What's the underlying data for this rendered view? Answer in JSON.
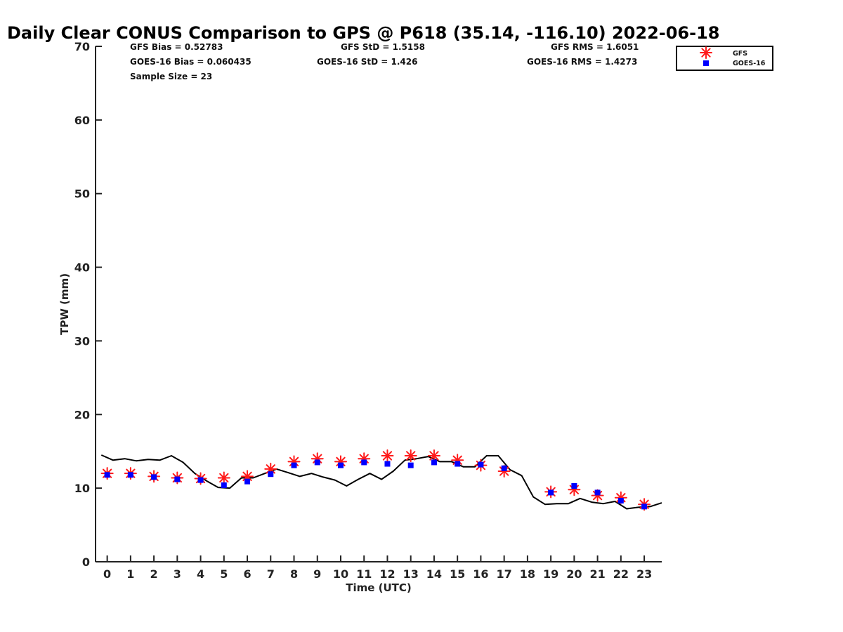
{
  "chart_data": {
    "type": "scatter",
    "title": "Daily Clear CONUS Comparison to GPS @ P618 (35.14, -116.10) 2022-06-18",
    "xlabel": "Time (UTC)",
    "ylabel": "TPW (mm)",
    "xlim": [
      -0.5,
      23.75
    ],
    "ylim": [
      0,
      70
    ],
    "x_ticks": [
      "0",
      "1",
      "2",
      "3",
      "4",
      "5",
      "6",
      "7",
      "8",
      "9",
      "10",
      "11",
      "12",
      "13",
      "14",
      "15",
      "16",
      "17",
      "18",
      "19",
      "20",
      "21",
      "22",
      "23"
    ],
    "y_ticks": [
      "0",
      "10",
      "20",
      "30",
      "40",
      "50",
      "60",
      "70"
    ],
    "grid": false,
    "legend_position": "top-right",
    "stats": {
      "gfs_bias": "GFS Bias = 0.52783",
      "gfs_std": "GFS StD = 1.5158",
      "gfs_rms": "GFS RMS = 1.6051",
      "goes_bias": "GOES-16 Bias = 0.060435",
      "goes_std": "GOES-16 StD = 1.426",
      "goes_rms": "GOES-16 RMS = 1.4273",
      "sample_size": "Sample Size = 23"
    },
    "series": [
      {
        "name": "GFS",
        "marker": "asterisk",
        "color": "#ff1a1a",
        "x": [
          0,
          1,
          2,
          3,
          4,
          5,
          6,
          7,
          8,
          9,
          10,
          11,
          12,
          13,
          14,
          15,
          16,
          17,
          19,
          20,
          21,
          22,
          23
        ],
        "y": [
          12.0,
          12.0,
          11.6,
          11.4,
          11.3,
          11.4,
          11.6,
          12.6,
          13.6,
          14.0,
          13.6,
          14.0,
          14.4,
          14.4,
          14.4,
          13.8,
          13.1,
          12.3,
          9.5,
          9.8,
          9.0,
          8.7,
          7.8
        ]
      },
      {
        "name": "GOES-16",
        "marker": "square",
        "color": "#0000ff",
        "x": [
          0,
          1,
          2,
          3,
          4,
          5,
          6,
          7,
          8,
          9,
          10,
          11,
          12,
          13,
          14,
          15,
          16,
          17,
          19,
          20,
          21,
          22,
          23
        ],
        "y": [
          11.8,
          11.8,
          11.5,
          11.2,
          11.1,
          10.4,
          10.9,
          11.9,
          13.1,
          13.5,
          13.1,
          13.5,
          13.3,
          13.1,
          13.5,
          13.3,
          13.2,
          12.7,
          9.4,
          10.3,
          9.4,
          8.3,
          7.5
        ]
      },
      {
        "name": "GPS",
        "marker": "line",
        "color": "#000000",
        "x": [
          -0.25,
          0.25,
          0.75,
          1.25,
          1.75,
          2.25,
          2.75,
          3.25,
          3.75,
          4.25,
          4.75,
          5.25,
          5.75,
          6.25,
          6.75,
          7.25,
          7.75,
          8.25,
          8.75,
          9.25,
          9.75,
          10.25,
          10.75,
          11.25,
          11.75,
          12.25,
          12.75,
          13.25,
          13.75,
          14.25,
          14.75,
          15.25,
          15.75,
          16.25,
          16.75,
          17.25,
          17.75,
          18.25,
          18.75,
          19.25,
          19.75,
          20.25,
          20.75,
          21.25,
          21.75,
          22.25,
          22.75,
          23.25,
          23.75
        ],
        "y": [
          14.5,
          13.8,
          14.0,
          13.7,
          13.9,
          13.8,
          14.4,
          13.5,
          12.0,
          11.0,
          10.1,
          10.0,
          11.4,
          11.4,
          12.0,
          12.6,
          12.1,
          11.6,
          12.0,
          11.5,
          11.1,
          10.3,
          11.2,
          12.0,
          11.2,
          12.3,
          13.8,
          14.0,
          14.3,
          13.6,
          13.6,
          12.9,
          12.9,
          14.4,
          14.4,
          12.5,
          11.7,
          8.8,
          7.8,
          7.9,
          7.9,
          8.6,
          8.1,
          7.9,
          8.2,
          7.2,
          7.4,
          7.5,
          8.0
        ]
      }
    ]
  }
}
